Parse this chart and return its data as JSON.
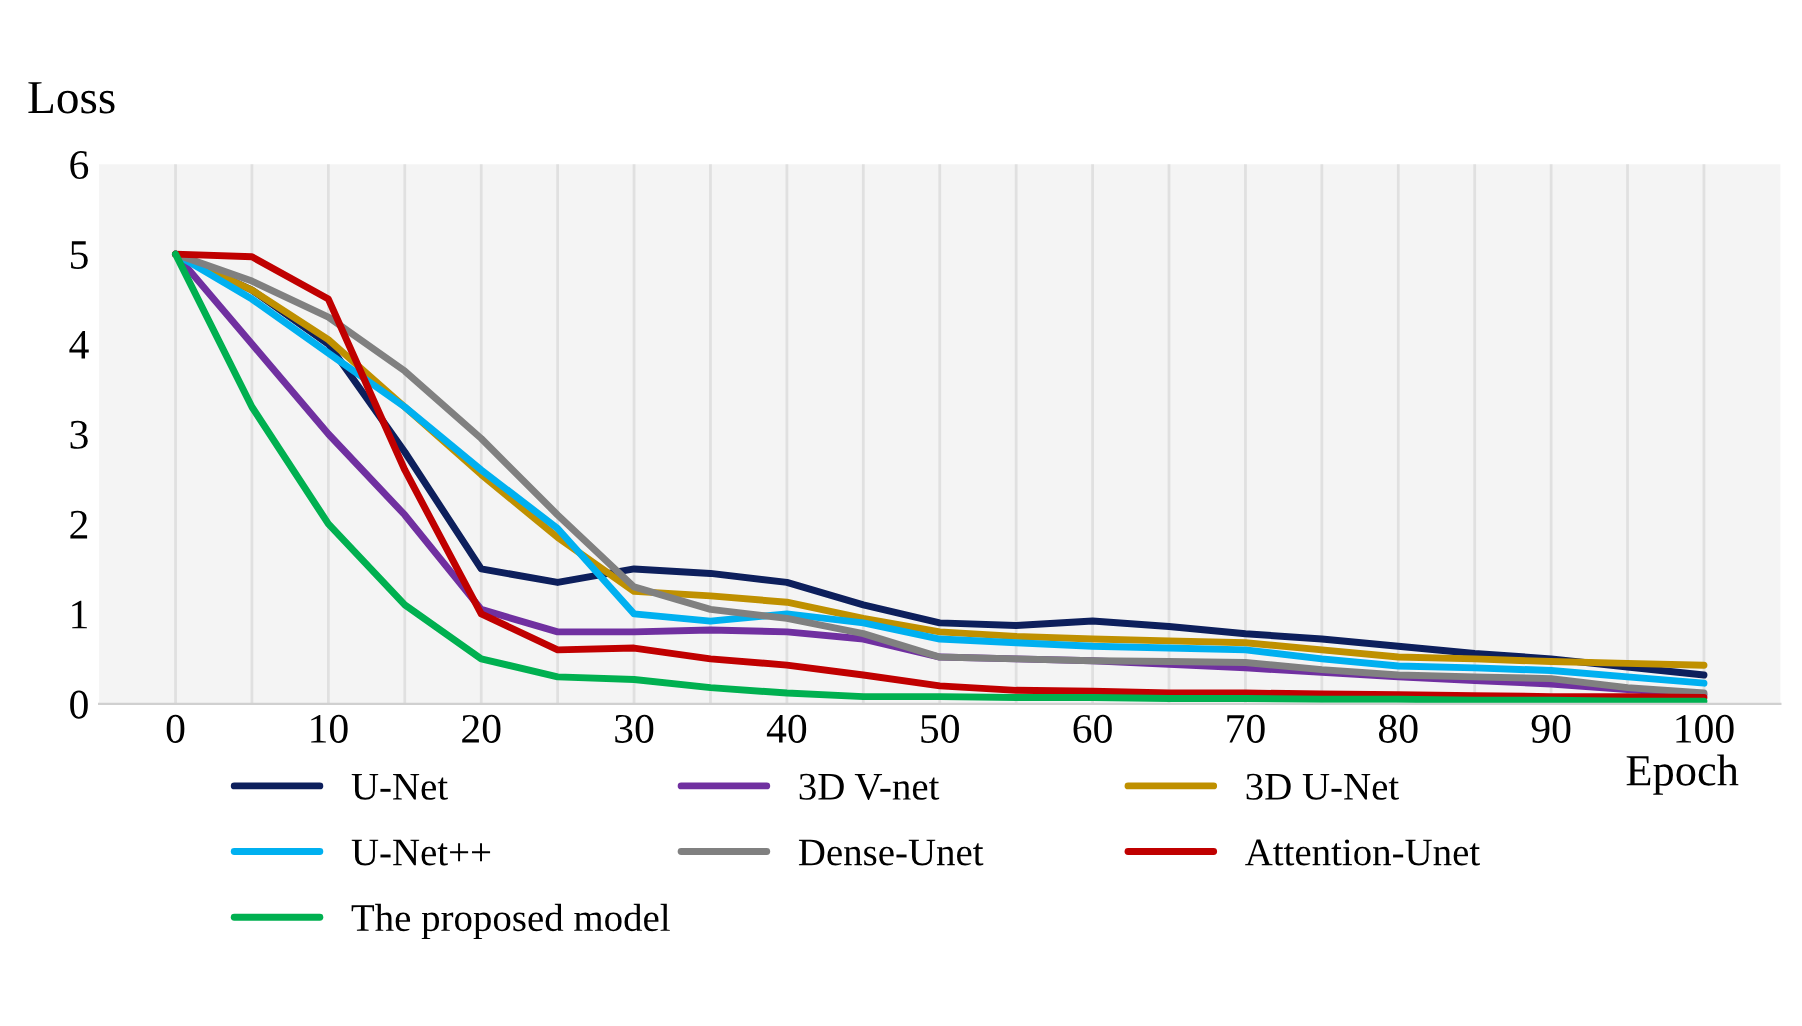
{
  "chart_data": {
    "type": "line",
    "xlabel": "Epoch",
    "ylabel": "Loss",
    "x": [
      0,
      5,
      10,
      15,
      20,
      25,
      30,
      35,
      40,
      45,
      50,
      55,
      60,
      65,
      70,
      75,
      80,
      85,
      90,
      95,
      100
    ],
    "series": [
      {
        "name": "U-Net",
        "color": "#0d1f5c",
        "values": [
          5,
          4.6,
          4.0,
          2.8,
          1.5,
          1.35,
          1.5,
          1.45,
          1.35,
          1.1,
          0.9,
          0.87,
          0.92,
          0.86,
          0.78,
          0.72,
          0.64,
          0.56,
          0.5,
          0.41,
          0.32
        ]
      },
      {
        "name": "3D V-net",
        "color": "#7030a0",
        "values": [
          5,
          4.0,
          3.0,
          2.1,
          1.05,
          0.8,
          0.8,
          0.82,
          0.8,
          0.72,
          0.52,
          0.5,
          0.48,
          0.44,
          0.4,
          0.35,
          0.3,
          0.26,
          0.22,
          0.16,
          0.1
        ]
      },
      {
        "name": "3D U-Net",
        "color": "#bf9000",
        "values": [
          5,
          4.6,
          4.05,
          3.3,
          2.55,
          1.85,
          1.25,
          1.2,
          1.13,
          0.95,
          0.8,
          0.75,
          0.72,
          0.7,
          0.68,
          0.6,
          0.52,
          0.5,
          0.47,
          0.45,
          0.43
        ]
      },
      {
        "name": "U-Net++",
        "color": "#00b0f0",
        "values": [
          5,
          4.5,
          3.9,
          3.3,
          2.6,
          1.95,
          1.0,
          0.92,
          1.0,
          0.9,
          0.72,
          0.68,
          0.64,
          0.62,
          0.6,
          0.5,
          0.42,
          0.4,
          0.37,
          0.3,
          0.23
        ]
      },
      {
        "name": "Dense-Unet",
        "color": "#808080",
        "values": [
          5,
          4.7,
          4.3,
          3.7,
          2.95,
          2.1,
          1.3,
          1.05,
          0.95,
          0.78,
          0.52,
          0.5,
          0.48,
          0.47,
          0.46,
          0.38,
          0.32,
          0.3,
          0.28,
          0.18,
          0.12
        ]
      },
      {
        "name": "Attention-Unet",
        "color": "#c00000",
        "values": [
          5,
          4.97,
          4.5,
          2.6,
          1.0,
          0.6,
          0.62,
          0.5,
          0.43,
          0.32,
          0.2,
          0.15,
          0.14,
          0.12,
          0.12,
          0.11,
          0.1,
          0.09,
          0.08,
          0.08,
          0.07
        ]
      },
      {
        "name": "The proposed model",
        "color": "#00b050",
        "values": [
          5,
          3.3,
          2.0,
          1.1,
          0.5,
          0.3,
          0.27,
          0.18,
          0.12,
          0.08,
          0.08,
          0.07,
          0.07,
          0.06,
          0.06,
          0.05,
          0.05,
          0.04,
          0.04,
          0.03,
          0.03
        ]
      }
    ],
    "xlim": [
      -5,
      105
    ],
    "ylim": [
      0,
      6
    ],
    "xticks": [
      0,
      {
        "value": 5,
        "label": null
      },
      10,
      {
        "value": 15,
        "label": null
      },
      20,
      {
        "value": 25,
        "label": null
      },
      30,
      {
        "value": 35,
        "label": null
      },
      40,
      {
        "value": 45,
        "label": null
      },
      50,
      {
        "value": 55,
        "label": null
      },
      60,
      {
        "value": 65,
        "label": null
      },
      70,
      {
        "value": 75,
        "label": null
      },
      80,
      {
        "value": 85,
        "label": null
      },
      90,
      {
        "value": 95,
        "label": null
      },
      100
    ],
    "yticks": [
      0,
      1,
      2,
      3,
      4,
      5,
      6
    ],
    "grid": "x",
    "legend": "bottom",
    "marker": "none",
    "line_style": "solid"
  }
}
